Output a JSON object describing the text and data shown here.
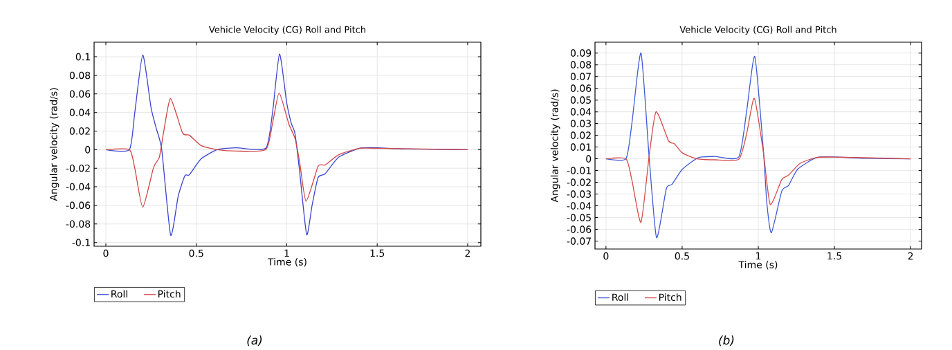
{
  "chart_data": [
    {
      "type": "line",
      "title": "Vehicle Velocity (CG) Roll and Pitch",
      "xlabel": "Time (s)",
      "ylabel": "Angular velocity (rad/s)",
      "annotations": [
        "(a)"
      ],
      "xlim": [
        -0.065,
        2.073
      ],
      "ylim": [
        -0.104,
        0.1157
      ],
      "xticks": [
        0,
        0.5,
        1,
        1.5,
        2
      ],
      "yticks": [
        -0.1,
        -0.08,
        -0.06,
        -0.04,
        -0.02,
        0,
        0.02,
        0.04,
        0.06,
        0.08,
        0.1
      ],
      "grid": true,
      "legend": "bottom",
      "series": [
        {
          "name": "Roll",
          "color": "#3a44d0",
          "x": [
            0,
            0.13,
            0.16,
            0.204,
            0.25,
            0.277,
            0.309,
            0.358,
            0.4,
            0.437,
            0.462,
            0.526,
            0.616,
            0.72,
            0.884,
            0.922,
            0.96,
            1.0,
            1.024,
            1.046,
            1.071,
            1.11,
            1.14,
            1.173,
            1.212,
            1.288,
            1.403,
            1.5,
            1.66,
            2.0
          ],
          "values": [
            0,
            0,
            0.04,
            0.102,
            0.045,
            0.024,
            0,
            -0.092,
            -0.05,
            -0.028,
            -0.027,
            -0.01,
            0,
            0.002,
            0.0015,
            0.041,
            0.103,
            0.05,
            0.029,
            0.017,
            -0.023,
            -0.0915,
            -0.06,
            -0.03,
            -0.026,
            -0.008,
            0.0015,
            0.002,
            0.0007,
            0
          ]
        },
        {
          "name": "Pitch",
          "color": "#d04444",
          "x": [
            0,
            0.13,
            0.16,
            0.204,
            0.264,
            0.296,
            0.322,
            0.358,
            0.424,
            0.462,
            0.526,
            0.616,
            0.72,
            0.884,
            0.922,
            0.958,
            1.011,
            1.046,
            1.071,
            1.107,
            1.173,
            1.212,
            1.288,
            1.403,
            1.5,
            2.0
          ],
          "values": [
            0,
            0,
            -0.02,
            -0.062,
            -0.019,
            -0.008,
            0.022,
            0.055,
            0.018,
            0.0156,
            0.0045,
            0,
            -0.0015,
            0,
            0.029,
            0.061,
            0.028,
            0.012,
            -0.013,
            -0.0556,
            -0.018,
            -0.0165,
            -0.0054,
            0.0015,
            0.0015,
            0
          ]
        }
      ]
    },
    {
      "type": "line",
      "title": "Vehicle Velocity (CG) Roll and Pitch",
      "xlabel": "Time (s)",
      "ylabel": "Angular velocity (rad/s)",
      "annotations": [
        "(b)"
      ],
      "xlim": [
        -0.072,
        2.072
      ],
      "ylim": [
        -0.0767,
        0.0992
      ],
      "xticks": [
        0,
        0.5,
        1,
        1.5,
        2
      ],
      "yticks": [
        -0.07,
        -0.06,
        -0.05,
        -0.04,
        -0.03,
        -0.02,
        -0.01,
        0,
        0.01,
        0.02,
        0.03,
        0.04,
        0.05,
        0.06,
        0.07,
        0.08,
        0.09
      ],
      "grid": true,
      "legend": "bottom",
      "series": [
        {
          "name": "Roll",
          "color": "#3f5ad6",
          "x": [
            0,
            0.131,
            0.17,
            0.23,
            0.283,
            0.332,
            0.396,
            0.434,
            0.502,
            0.607,
            0.713,
            0.872,
            0.924,
            0.977,
            1.033,
            1.056,
            1.086,
            1.154,
            1.199,
            1.259,
            1.38,
            1.5,
            1.7,
            2.0
          ],
          "values": [
            0,
            0,
            0.03,
            0.09,
            0.002,
            -0.067,
            -0.0255,
            -0.0216,
            -0.0088,
            0.001,
            0.002,
            0.0016,
            0.041,
            0.087,
            0.008,
            -0.0373,
            -0.0629,
            -0.0275,
            -0.0226,
            -0.0088,
            0.001,
            0.0016,
            0.0005,
            0
          ]
        },
        {
          "name": "Pitch",
          "color": "#d64a4a",
          "x": [
            0,
            0.131,
            0.17,
            0.23,
            0.283,
            0.329,
            0.411,
            0.449,
            0.502,
            0.598,
            0.713,
            0.872,
            0.924,
            0.974,
            1.033,
            1.078,
            1.154,
            1.199,
            1.274,
            1.38,
            1.5,
            2.0
          ],
          "values": [
            0,
            0,
            -0.018,
            -0.054,
            0.002,
            0.04,
            0.0153,
            0.0128,
            0.005,
            0,
            -0.0008,
            -0.0004,
            0.0216,
            0.0515,
            0.006,
            -0.0387,
            -0.0177,
            -0.0138,
            -0.0039,
            0.001,
            0.0015,
            0
          ]
        }
      ]
    }
  ]
}
